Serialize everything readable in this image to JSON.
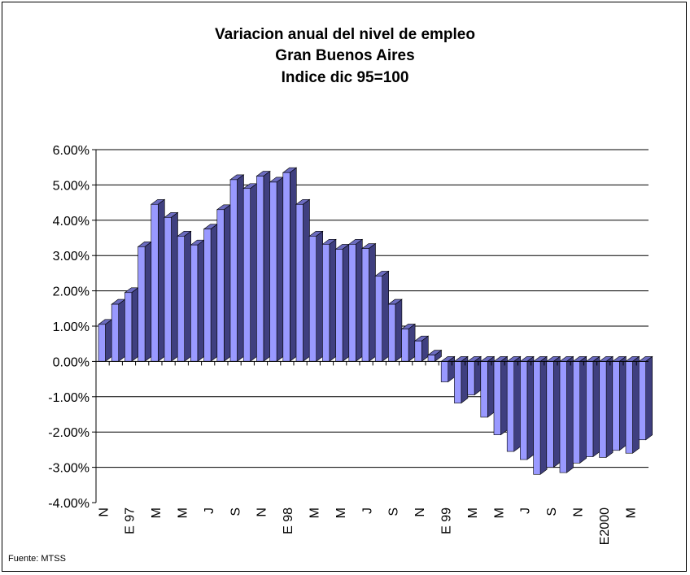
{
  "chart_data": {
    "type": "bar",
    "title_lines": [
      "Variacion anual del nivel de empleo",
      "Gran Buenos Aires",
      "Indice dic 95=100"
    ],
    "ylim": [
      -4.0,
      6.0
    ],
    "y_ticks": [
      "6.00%",
      "5.00%",
      "4.00%",
      "3.00%",
      "2.00%",
      "1.00%",
      "0.00%",
      "-1.00%",
      "-2.00%",
      "-3.00%",
      "-4.00%"
    ],
    "y_tick_values": [
      6,
      5,
      4,
      3,
      2,
      1,
      0,
      -1,
      -2,
      -3,
      -4
    ],
    "grid": true,
    "x_tick_labels": [
      {
        "index": 0,
        "label": "N"
      },
      {
        "index": 2,
        "label": "E 97"
      },
      {
        "index": 4,
        "label": "M"
      },
      {
        "index": 6,
        "label": "M"
      },
      {
        "index": 8,
        "label": "J"
      },
      {
        "index": 10,
        "label": "S"
      },
      {
        "index": 12,
        "label": "N"
      },
      {
        "index": 14,
        "label": "E 98"
      },
      {
        "index": 16,
        "label": "M"
      },
      {
        "index": 18,
        "label": "M"
      },
      {
        "index": 20,
        "label": "J"
      },
      {
        "index": 22,
        "label": "S"
      },
      {
        "index": 24,
        "label": "N"
      },
      {
        "index": 26,
        "label": "E 99"
      },
      {
        "index": 28,
        "label": "M"
      },
      {
        "index": 30,
        "label": "M"
      },
      {
        "index": 32,
        "label": "J"
      },
      {
        "index": 34,
        "label": "S"
      },
      {
        "index": 36,
        "label": "N"
      },
      {
        "index": 38,
        "label": "E2000"
      },
      {
        "index": 40,
        "label": "M"
      }
    ],
    "values": [
      1.05,
      1.62,
      1.95,
      3.25,
      4.45,
      4.08,
      3.55,
      3.3,
      3.75,
      4.3,
      5.15,
      4.9,
      5.25,
      5.08,
      5.35,
      4.45,
      3.55,
      3.32,
      3.18,
      3.32,
      3.2,
      2.42,
      1.62,
      0.92,
      0.58,
      0.18,
      -0.58,
      -1.18,
      -0.95,
      -1.58,
      -2.08,
      -2.55,
      -2.78,
      -3.2,
      -3.0,
      -3.15,
      -2.88,
      -2.7,
      -2.72,
      -2.52,
      -2.6,
      -2.22
    ],
    "colors": {
      "bar_front": "#9999ff",
      "bar_side": "#3f3f7f",
      "bar_top": "#6b6bbf",
      "grid": "#000000",
      "axis": "#000000"
    }
  },
  "footer": {
    "source": "Fuente: MTSS"
  }
}
